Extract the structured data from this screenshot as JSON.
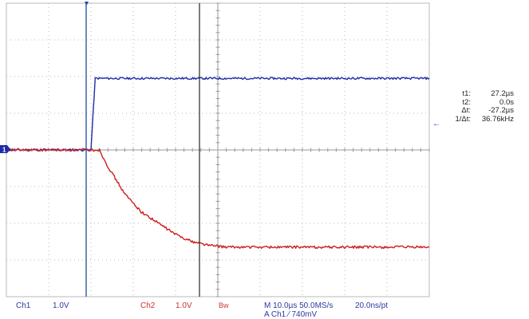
{
  "cursor_readout": [
    {
      "label": "t1:",
      "value": "27.2µs"
    },
    {
      "label": "t2:",
      "value": "0.0s"
    },
    {
      "label": "Δt:",
      "value": "-27.2µs"
    },
    {
      "label": "1/Δt:",
      "value": "36.76kHz"
    }
  ],
  "status": {
    "ch1_label": "Ch1",
    "ch1_scale": "1.0V",
    "ch2_label": "Ch2",
    "ch2_scale": "1.0V",
    "bw_label": "Bw",
    "timebase": "M 10.0µs 50.0MS/s",
    "resolution": "20.0ns/pt",
    "trigger": "A  Ch1  ⁄  740mV"
  },
  "colors": {
    "ch1": "#1c2ca8",
    "ch2": "#cc1f1f",
    "grid": "#b9b9b9",
    "cursor": "#111111",
    "trigger_line": "#1c4f9e"
  },
  "icons": {
    "ground_marker": "ch1-ground-marker-icon",
    "trigger_marker": "trigger-position-marker-icon",
    "reference_arrow": "reference-arrow-icon"
  },
  "chart_data": {
    "type": "line",
    "grid": true,
    "x_divisions": 10,
    "y_divisions": 8,
    "series": [
      {
        "name": "Ch1",
        "color": "#1c2ca8",
        "x": [
          0,
          20,
          21,
          100
        ],
        "y": [
          0,
          0,
          1.95,
          1.95
        ]
      },
      {
        "name": "Ch2",
        "color": "#cc1f1f",
        "x": [
          0,
          22,
          24,
          28,
          32,
          36,
          40,
          44,
          48,
          52,
          100
        ],
        "y": [
          0,
          0,
          -0.45,
          -1.2,
          -1.7,
          -2.0,
          -2.3,
          -2.5,
          -2.6,
          -2.65,
          -2.65
        ]
      }
    ]
  }
}
